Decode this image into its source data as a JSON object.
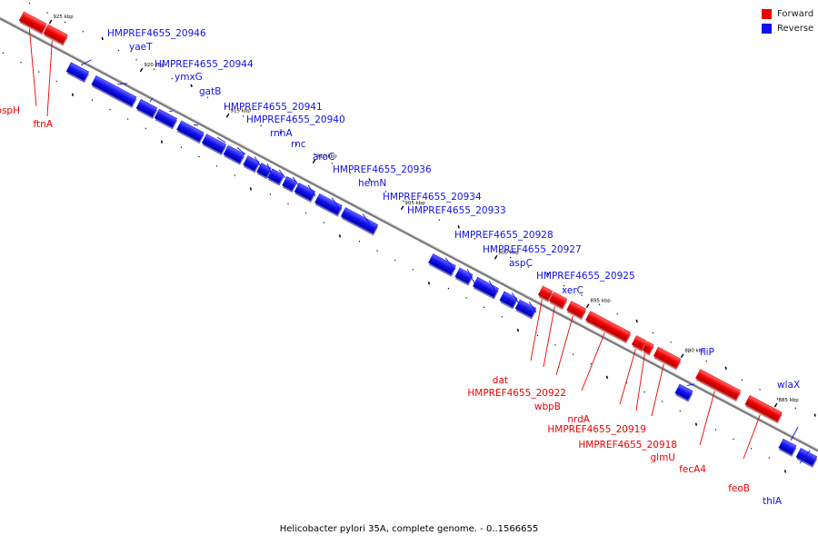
{
  "caption": "Helicobacter pylori 35A, complete genome. - 0..1566655",
  "legend": [
    {
      "label": "Forward",
      "color": "#ee0000"
    },
    {
      "label": "Reverse",
      "color": "#1111ee"
    }
  ],
  "colors": {
    "forward": "#ee0000",
    "reverse": "#1111ee",
    "backbone": "#888888",
    "tick": "#000000"
  },
  "chart_data": {
    "type": "genome-map",
    "title": "Helicobacter pylori 35A, complete genome. - 0..1566655",
    "axis_unit": "kbp",
    "ticks": [
      {
        "label": "925 kbp",
        "kbp": 925
      },
      {
        "label": "920 kbp",
        "kbp": 920
      },
      {
        "label": "915 kbp",
        "kbp": 915
      },
      {
        "label": "910 kbp",
        "kbp": 910
      },
      {
        "label": "905 kbp",
        "kbp": 905
      },
      {
        "label": "900 kbp",
        "kbp": 900
      },
      {
        "label": "895 kbp",
        "kbp": 895
      },
      {
        "label": "890 kbp",
        "kbp": 890
      },
      {
        "label": "885 kbp",
        "kbp": 885
      }
    ],
    "genes": [
      {
        "name": "pspH",
        "strand": "forward"
      },
      {
        "name": "ftnA",
        "strand": "forward"
      },
      {
        "name": "HMPREF4655_20946",
        "strand": "reverse"
      },
      {
        "name": "yaeT",
        "strand": "reverse"
      },
      {
        "name": "HMPREF4655_20944",
        "strand": "reverse"
      },
      {
        "name": "ymxG",
        "strand": "reverse"
      },
      {
        "name": "gatB",
        "strand": "reverse"
      },
      {
        "name": "HMPREF4655_20941",
        "strand": "reverse"
      },
      {
        "name": "HMPREF4655_20940",
        "strand": "reverse"
      },
      {
        "name": "rnhA",
        "strand": "reverse"
      },
      {
        "name": "rnc",
        "strand": "reverse"
      },
      {
        "name": "aroC",
        "strand": "reverse"
      },
      {
        "name": "HMPREF4655_20936",
        "strand": "reverse"
      },
      {
        "name": "hemN",
        "strand": "reverse"
      },
      {
        "name": "HMPREF4655_20934",
        "strand": "reverse"
      },
      {
        "name": "HMPREF4655_20933",
        "strand": "reverse"
      },
      {
        "name": "HMPREF4655_20928",
        "strand": "reverse"
      },
      {
        "name": "HMPREF4655_20927",
        "strand": "reverse"
      },
      {
        "name": "aspC",
        "strand": "reverse"
      },
      {
        "name": "HMPREF4655_20925",
        "strand": "reverse"
      },
      {
        "name": "xerC",
        "strand": "reverse"
      },
      {
        "name": "dat",
        "strand": "forward"
      },
      {
        "name": "HMPREF4655_20922",
        "strand": "forward"
      },
      {
        "name": "wbpB",
        "strand": "forward"
      },
      {
        "name": "nrdA",
        "strand": "forward"
      },
      {
        "name": "HMPREF4655_20919",
        "strand": "forward"
      },
      {
        "name": "HMPREF4655_20918",
        "strand": "forward"
      },
      {
        "name": "glmU",
        "strand": "forward"
      },
      {
        "name": "fliP",
        "strand": "reverse"
      },
      {
        "name": "fecA4",
        "strand": "forward"
      },
      {
        "name": "feoB",
        "strand": "forward"
      },
      {
        "name": "wlaX",
        "strand": "reverse"
      },
      {
        "name": "thlA",
        "strand": "reverse"
      }
    ]
  }
}
